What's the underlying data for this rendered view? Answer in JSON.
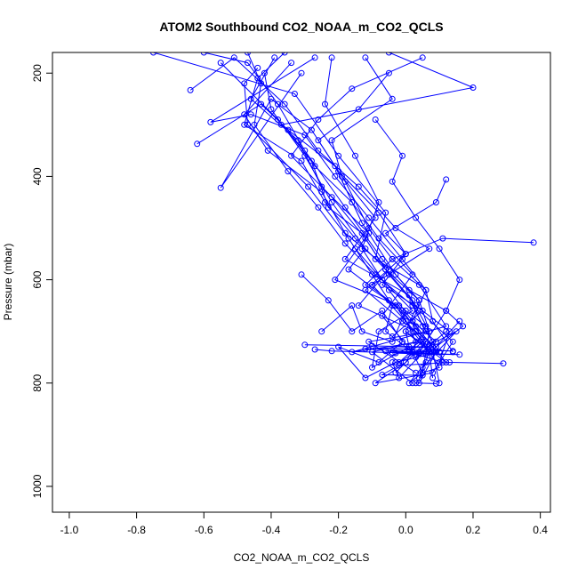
{
  "chart_data": {
    "type": "line",
    "title": "ATOM2 Southbound CO2_NOAA_m_CO2_QCLS",
    "xlabel": "CO2_NOAA_m_CO2_QCLS",
    "ylabel": "Pressure (mbar)",
    "xlim": [
      -1.05,
      0.43
    ],
    "ylim": [
      1050,
      160
    ],
    "y_reversed": true,
    "x_ticks": [
      -1.0,
      -0.8,
      -0.6,
      -0.4,
      -0.2,
      0.0,
      0.2,
      0.4
    ],
    "x_tick_labels": [
      "-1.0",
      "-0.8",
      "-0.6",
      "-0.4",
      "-0.2",
      "0.0",
      "0.2",
      "0.4"
    ],
    "y_ticks": [
      200,
      400,
      600,
      800,
      1000
    ],
    "y_tick_labels": [
      "200",
      "400",
      "600",
      "800",
      "1000"
    ],
    "grid": false,
    "marker": "open-circle",
    "line_color": "#0000ff",
    "series": [
      {
        "x": [
          -0.75,
          -0.33,
          -0.2,
          -0.06,
          -0.09,
          0.04,
          0.12,
          -0.16,
          0.05,
          -0.02,
          0.08,
          -0.02,
          -0.04
        ],
        "y": [
          160,
          240,
          360,
          470,
          560,
          610,
          690,
          740,
          720,
          760,
          720,
          790,
          760
        ]
      },
      {
        "x": [
          -0.44,
          -0.48,
          -0.47,
          -0.29,
          -0.17,
          -0.1,
          -0.04,
          -0.06,
          0.02,
          0.05,
          0.01,
          0.06
        ],
        "y": [
          190,
          220,
          300,
          420,
          520,
          590,
          650,
          700,
          740,
          780,
          800,
          760
        ]
      },
      {
        "x": [
          -0.22,
          -0.24,
          -0.15,
          -0.08,
          -0.13,
          -0.05,
          0.02,
          0.09,
          0.15,
          0.05
        ],
        "y": [
          170,
          260,
          360,
          450,
          540,
          620,
          680,
          720,
          700,
          770
        ]
      },
      {
        "x": [
          -0.6,
          -0.47,
          -0.38,
          -0.3,
          -0.18,
          -0.07,
          0.01,
          0.12,
          0.17,
          0.07,
          0.08
        ],
        "y": [
          160,
          180,
          260,
          350,
          460,
          560,
          620,
          660,
          690,
          740,
          790
        ]
      },
      {
        "x": [
          -0.39,
          -0.46,
          -0.32,
          -0.25,
          -0.11,
          -0.21,
          -0.02,
          0.03,
          -0.1,
          0.02
        ],
        "y": [
          170,
          250,
          330,
          420,
          510,
          600,
          650,
          720,
          740,
          800
        ]
      },
      {
        "x": [
          -0.05,
          0.2,
          -0.37,
          -0.21,
          -0.13,
          -0.03,
          0.04,
          0.0,
          0.07,
          0.04
        ],
        "y": [
          160,
          228,
          300,
          380,
          490,
          590,
          640,
          700,
          740,
          790
        ]
      },
      {
        "x": [
          -0.42,
          -0.4,
          -0.3,
          -0.22,
          -0.12,
          -0.17,
          -0.01,
          0.06,
          0.03,
          0.12
        ],
        "y": [
          200,
          270,
          360,
          450,
          540,
          580,
          660,
          720,
          750,
          700
        ]
      },
      {
        "x": [
          -0.34,
          -0.48,
          -0.41,
          -0.25,
          -0.18,
          -0.05,
          -0.14,
          0.03,
          0.1,
          0.05
        ],
        "y": [
          180,
          280,
          350,
          430,
          510,
          580,
          650,
          700,
          770,
          780
        ]
      },
      {
        "x": [
          -0.64,
          -0.51,
          -0.36,
          -0.26,
          -0.14,
          -0.03,
          0.07,
          -0.1,
          0.0,
          0.08,
          0.1
        ],
        "y": [
          233,
          170,
          260,
          350,
          420,
          500,
          540,
          610,
          680,
          740,
          800
        ]
      },
      {
        "x": [
          -0.27,
          -0.58,
          -0.46,
          -0.3,
          -0.21,
          -0.11,
          -0.01,
          0.06,
          0.08,
          0.14
        ],
        "y": [
          170,
          295,
          280,
          320,
          400,
          480,
          560,
          620,
          680,
          740
        ]
      },
      {
        "x": [
          -0.05,
          -0.14,
          -0.26,
          -0.18,
          -0.11,
          -0.04,
          0.06,
          0.02,
          0.09,
          0.04
        ],
        "y": [
          200,
          270,
          330,
          410,
          500,
          560,
          620,
          680,
          740,
          800
        ]
      },
      {
        "x": [
          -0.47,
          -0.43,
          -0.45,
          -0.35,
          -0.26,
          -0.18,
          -0.09,
          0.02,
          0.06,
          0.01,
          0.11
        ],
        "y": [
          160,
          220,
          300,
          390,
          460,
          530,
          590,
          650,
          700,
          740,
          760
        ]
      },
      {
        "x": [
          -0.31,
          -0.55,
          -0.4,
          -0.28,
          -0.2,
          -0.08,
          0.0,
          -0.07,
          0.05,
          -0.04
        ],
        "y": [
          200,
          422,
          250,
          310,
          390,
          470,
          550,
          610,
          660,
          710
        ]
      },
      {
        "x": [
          0.05,
          -0.16,
          -0.26,
          -0.34,
          -0.22,
          -0.12,
          -0.05,
          0.03,
          0.13,
          0.1
        ],
        "y": [
          170,
          230,
          290,
          360,
          440,
          520,
          590,
          650,
          700,
          760
        ]
      },
      {
        "x": [
          -0.62,
          -0.43,
          -0.35,
          -0.27,
          -0.16,
          -0.08,
          0.02,
          -0.07,
          0.02
        ],
        "y": [
          337,
          260,
          310,
          380,
          450,
          520,
          590,
          670,
          740
        ]
      },
      {
        "x": [
          -0.12,
          -0.04,
          -0.22,
          -0.19,
          -0.09,
          -0.18,
          0.01,
          0.05,
          0.1
        ],
        "y": [
          170,
          250,
          330,
          400,
          480,
          560,
          630,
          690,
          740
        ]
      },
      {
        "x": [
          -0.36,
          -0.44,
          -0.48,
          -0.31,
          -0.24,
          -0.15,
          -0.06,
          0.04,
          0.07,
          0.05
        ],
        "y": [
          160,
          210,
          300,
          370,
          450,
          520,
          580,
          640,
          700,
          780
        ]
      },
      {
        "x": [
          0.12,
          0.09,
          -0.06,
          0.0,
          -0.12,
          -0.01,
          0.09,
          0.16
        ],
        "y": [
          406,
          450,
          510,
          550,
          620,
          680,
          730,
          680
        ]
      },
      {
        "x": [
          0.38,
          0.11,
          -0.04,
          -0.12,
          -0.03,
          0.02,
          0.07
        ],
        "y": [
          528,
          520,
          560,
          610,
          650,
          700,
          740
        ]
      },
      {
        "x": [
          -0.31,
          -0.23,
          -0.16,
          -0.07,
          -0.01,
          -0.08,
          -0.2,
          -0.12,
          -0.03,
          0.1
        ],
        "y": [
          590,
          640,
          700,
          660,
          720,
          760,
          730,
          790,
          760,
          740
        ]
      },
      {
        "x": [
          -0.3,
          -0.1,
          0.08,
          -0.12,
          0.01,
          0.14,
          0.08
        ],
        "y": [
          726,
          728,
          730,
          734,
          736,
          738,
          736
        ]
      },
      {
        "x": [
          -0.27,
          -0.22,
          -0.04,
          0.09,
          -0.06,
          0.04,
          0.16,
          0.06,
          -0.03,
          0.02
        ],
        "y": [
          735,
          738,
          741,
          740,
          738,
          742,
          745,
          744,
          742,
          740
        ]
      },
      {
        "x": [
          0.29,
          0.13,
          -0.02,
          -0.07,
          0.05,
          0.03,
          0.09
        ],
        "y": [
          762,
          760,
          766,
          784,
          785,
          800,
          801
        ]
      },
      {
        "x": [
          -0.25,
          -0.16,
          -0.13,
          -0.04,
          0.0,
          0.06,
          0.0,
          -0.09,
          0.08,
          0.14,
          0.04
        ],
        "y": [
          700,
          650,
          700,
          720,
          660,
          690,
          760,
          800,
          780,
          720,
          660
        ]
      },
      {
        "x": [
          -0.15,
          -0.07,
          0.02,
          -0.08,
          -0.1,
          0.01,
          0.0,
          0.12,
          0.03,
          -0.05
        ],
        "y": [
          540,
          600,
          660,
          700,
          770,
          730,
          700,
          760,
          690,
          640
        ]
      },
      {
        "x": [
          -0.09,
          -0.01,
          -0.04,
          0.03,
          0.1,
          0.16,
          0.12,
          0.06,
          -0.03
        ],
        "y": [
          290,
          360,
          410,
          480,
          540,
          600,
          660,
          720,
          780
        ]
      },
      {
        "x": [
          -0.55,
          -0.38,
          -0.28,
          -0.23,
          -0.13,
          -0.06,
          0.02,
          0.07,
          -0.11,
          0.03
        ],
        "y": [
          180,
          290,
          370,
          460,
          510,
          580,
          640,
          700,
          720,
          780
        ]
      }
    ]
  }
}
